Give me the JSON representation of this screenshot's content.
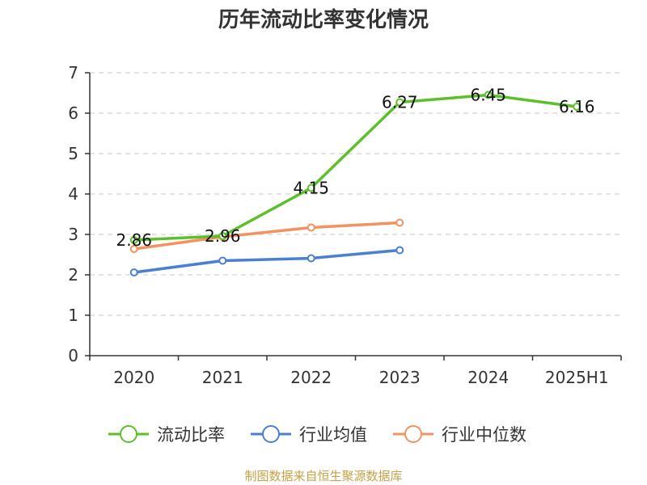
{
  "chart_data": {
    "type": "line",
    "title": "历年流动比率变化情况",
    "xlabel": "",
    "ylabel": "",
    "categories": [
      "2020",
      "2021",
      "2022",
      "2023",
      "2024",
      "2025H1"
    ],
    "ylim": [
      0,
      7
    ],
    "yticks": [
      "0",
      "1",
      "2",
      "3",
      "4",
      "5",
      "6",
      "7"
    ],
    "grid": true,
    "legend_position": "bottom",
    "series": [
      {
        "name": "流动比率",
        "color": "#5cc02a",
        "values": [
          2.86,
          2.96,
          4.15,
          6.27,
          6.45,
          6.16
        ],
        "labels": [
          "2.86",
          "2.96",
          "4.15",
          "6.27",
          "6.45",
          "6.16"
        ]
      },
      {
        "name": "行业均值",
        "color": "#4a7fd6",
        "values": [
          2.06,
          2.35,
          2.41,
          2.61,
          null,
          null
        ]
      },
      {
        "name": "行业中位数",
        "color": "#f4925e",
        "values": [
          2.64,
          2.94,
          3.17,
          3.29,
          null,
          null
        ]
      }
    ],
    "source": "制图数据来自恒生聚源数据库"
  }
}
